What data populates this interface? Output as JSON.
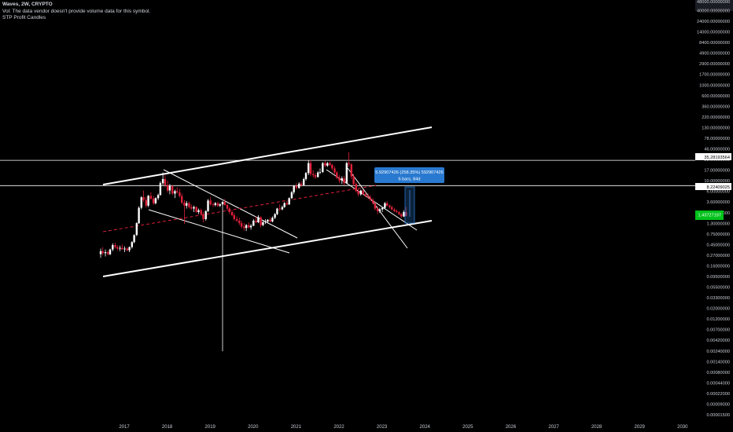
{
  "legend": {
    "title": "Waves, 2W, CRYPTO",
    "volume_note": "Vol: The data vendor doesn't provide volume data for this symbol.",
    "indicator": "STP Profit Candles"
  },
  "colors": {
    "background": "#000000",
    "up_candle": "#ffffff",
    "down_candle": "#e0203a",
    "trend_line": "#ffffff",
    "dashed_line": "#e0203a",
    "price_tag": "#00c21a",
    "measure_box": "#2979d0"
  },
  "chart_data": {
    "type": "candlestick",
    "title": "Waves, 2W, CRYPTO",
    "y_scale": "log",
    "x_ticks": [
      "2017",
      "2018",
      "2019",
      "2020",
      "2021",
      "2022",
      "2023",
      "2024",
      "2025",
      "2026",
      "2027",
      "2028",
      "2029",
      "2030"
    ],
    "y_ticks": [
      "40000.00000000",
      "24000.00000000",
      "14000.00000000",
      "8400.00000000",
      "4900.00000000",
      "2900.00000000",
      "1700.00000000",
      "1000.00000000",
      "600.00000000",
      "360.00000000",
      "220.00000000",
      "130.00000000",
      "78.00000000",
      "46.00000000",
      "28.00000000",
      "17.00000000",
      "10.00000000",
      "6.00000000",
      "3.60000000",
      "2.10000000",
      "1.30000000",
      "0.75000000",
      "0.45000000",
      "0.27000000",
      "0.16000000",
      "0.09500000",
      "0.05500000",
      "0.03300000",
      "0.02000000",
      "0.01200000",
      "0.00700000",
      "0.00420000",
      "0.00240000",
      "0.00140000",
      "0.00080000",
      "0.00044000",
      "0.00022000",
      "0.00009000",
      "0.00001500"
    ],
    "y_axis_top_label": "48000.00000000",
    "horizontal_levels": [
      {
        "label": "35.28193564",
        "value": 35.28
      },
      {
        "label": "8.22409025",
        "value": 8.22
      }
    ],
    "current_price_label": "1.43727197",
    "measurement": {
      "line1": "5.92907426 (258.35%) 592907426",
      "line2": "6 bars, 84d"
    },
    "candles": [
      {
        "t": 2016.45,
        "o": 0.16,
        "h": 0.22,
        "l": 0.13,
        "c": 0.19
      },
      {
        "t": 2016.5,
        "o": 0.19,
        "h": 0.24,
        "l": 0.15,
        "c": 0.17
      },
      {
        "t": 2016.56,
        "o": 0.17,
        "h": 0.21,
        "l": 0.14,
        "c": 0.18
      },
      {
        "t": 2016.62,
        "o": 0.18,
        "h": 0.2,
        "l": 0.15,
        "c": 0.16
      },
      {
        "t": 2016.67,
        "o": 0.16,
        "h": 0.22,
        "l": 0.15,
        "c": 0.21
      },
      {
        "t": 2016.73,
        "o": 0.21,
        "h": 0.3,
        "l": 0.19,
        "c": 0.27
      },
      {
        "t": 2016.79,
        "o": 0.27,
        "h": 0.31,
        "l": 0.22,
        "c": 0.24
      },
      {
        "t": 2016.84,
        "o": 0.24,
        "h": 0.27,
        "l": 0.2,
        "c": 0.22
      },
      {
        "t": 2016.9,
        "o": 0.22,
        "h": 0.26,
        "l": 0.19,
        "c": 0.23
      },
      {
        "t": 2016.95,
        "o": 0.23,
        "h": 0.28,
        "l": 0.21,
        "c": 0.21
      },
      {
        "t": 2017.01,
        "o": 0.21,
        "h": 0.25,
        "l": 0.18,
        "c": 0.22
      },
      {
        "t": 2017.07,
        "o": 0.22,
        "h": 0.24,
        "l": 0.19,
        "c": 0.2
      },
      {
        "t": 2017.12,
        "o": 0.2,
        "h": 0.25,
        "l": 0.18,
        "c": 0.24
      },
      {
        "t": 2017.18,
        "o": 0.24,
        "h": 0.34,
        "l": 0.22,
        "c": 0.32
      },
      {
        "t": 2017.23,
        "o": 0.32,
        "h": 0.5,
        "l": 0.3,
        "c": 0.48
      },
      {
        "t": 2017.29,
        "o": 0.48,
        "h": 1.0,
        "l": 0.45,
        "c": 0.95
      },
      {
        "t": 2017.34,
        "o": 0.95,
        "h": 2.5,
        "l": 0.9,
        "c": 2.3
      },
      {
        "t": 2017.4,
        "o": 2.3,
        "h": 4.5,
        "l": 2.1,
        "c": 4.2
      },
      {
        "t": 2017.45,
        "o": 4.2,
        "h": 6.2,
        "l": 3.2,
        "c": 3.6
      },
      {
        "t": 2017.51,
        "o": 3.6,
        "h": 4.4,
        "l": 2.3,
        "c": 2.6
      },
      {
        "t": 2017.56,
        "o": 2.6,
        "h": 4.8,
        "l": 2.4,
        "c": 4.6
      },
      {
        "t": 2017.62,
        "o": 4.6,
        "h": 5.6,
        "l": 3.6,
        "c": 3.9
      },
      {
        "t": 2017.68,
        "o": 3.9,
        "h": 4.6,
        "l": 2.7,
        "c": 3.0
      },
      {
        "t": 2017.73,
        "o": 3.0,
        "h": 4.2,
        "l": 2.8,
        "c": 4.0
      },
      {
        "t": 2017.79,
        "o": 4.0,
        "h": 5.2,
        "l": 3.6,
        "c": 4.8
      },
      {
        "t": 2017.84,
        "o": 4.8,
        "h": 10.5,
        "l": 4.6,
        "c": 9.5
      },
      {
        "t": 2017.9,
        "o": 9.5,
        "h": 17.5,
        "l": 8.5,
        "c": 12.0
      },
      {
        "t": 2017.95,
        "o": 12.0,
        "h": 15.0,
        "l": 7.5,
        "c": 8.5
      },
      {
        "t": 2018.01,
        "o": 8.5,
        "h": 11.0,
        "l": 5.5,
        "c": 6.2
      },
      {
        "t": 2018.06,
        "o": 6.2,
        "h": 9.0,
        "l": 5.0,
        "c": 8.0
      },
      {
        "t": 2018.12,
        "o": 8.0,
        "h": 8.5,
        "l": 4.8,
        "c": 5.2
      },
      {
        "t": 2018.18,
        "o": 5.2,
        "h": 6.5,
        "l": 4.0,
        "c": 6.0
      },
      {
        "t": 2018.23,
        "o": 6.0,
        "h": 7.5,
        "l": 5.2,
        "c": 5.6
      },
      {
        "t": 2018.29,
        "o": 5.6,
        "h": 6.8,
        "l": 4.2,
        "c": 4.5
      },
      {
        "t": 2018.34,
        "o": 4.5,
        "h": 5.2,
        "l": 2.8,
        "c": 3.1
      },
      {
        "t": 2018.4,
        "o": 3.1,
        "h": 3.6,
        "l": 0.9,
        "c": 2.6
      },
      {
        "t": 2018.45,
        "o": 2.6,
        "h": 3.4,
        "l": 2.2,
        "c": 3.0
      },
      {
        "t": 2018.51,
        "o": 3.0,
        "h": 3.3,
        "l": 2.2,
        "c": 2.4
      },
      {
        "t": 2018.56,
        "o": 2.4,
        "h": 2.8,
        "l": 2.0,
        "c": 2.2
      },
      {
        "t": 2018.62,
        "o": 2.2,
        "h": 2.6,
        "l": 1.8,
        "c": 2.4
      },
      {
        "t": 2018.68,
        "o": 2.4,
        "h": 2.5,
        "l": 1.7,
        "c": 1.8
      },
      {
        "t": 2018.73,
        "o": 1.8,
        "h": 2.2,
        "l": 1.6,
        "c": 2.0
      },
      {
        "t": 2018.79,
        "o": 2.0,
        "h": 2.2,
        "l": 1.5,
        "c": 1.6
      },
      {
        "t": 2018.84,
        "o": 1.6,
        "h": 1.8,
        "l": 1.0,
        "c": 1.2
      },
      {
        "t": 2018.9,
        "o": 1.2,
        "h": 2.0,
        "l": 1.1,
        "c": 1.9
      },
      {
        "t": 2018.95,
        "o": 1.9,
        "h": 3.8,
        "l": 1.8,
        "c": 3.5
      },
      {
        "t": 2019.01,
        "o": 3.5,
        "h": 4.2,
        "l": 2.6,
        "c": 2.8
      },
      {
        "t": 2019.07,
        "o": 2.8,
        "h": 3.1,
        "l": 2.4,
        "c": 2.7
      },
      {
        "t": 2019.12,
        "o": 2.7,
        "h": 3.2,
        "l": 2.5,
        "c": 3.0
      },
      {
        "t": 2019.18,
        "o": 3.0,
        "h": 3.3,
        "l": 2.4,
        "c": 2.6
      },
      {
        "t": 2019.23,
        "o": 2.6,
        "h": 3.0,
        "l": 2.4,
        "c": 2.8
      },
      {
        "t": 2019.29,
        "o": 2.8,
        "h": 3.4,
        "l": 0.0006,
        "c": 3.2
      },
      {
        "t": 2019.34,
        "o": 3.2,
        "h": 3.8,
        "l": 2.6,
        "c": 2.7
      },
      {
        "t": 2019.4,
        "o": 2.7,
        "h": 3.0,
        "l": 2.0,
        "c": 2.2
      },
      {
        "t": 2019.45,
        "o": 2.2,
        "h": 2.4,
        "l": 1.6,
        "c": 1.8
      },
      {
        "t": 2019.51,
        "o": 1.8,
        "h": 2.0,
        "l": 1.4,
        "c": 1.5
      },
      {
        "t": 2019.56,
        "o": 1.5,
        "h": 1.7,
        "l": 1.1,
        "c": 1.2
      },
      {
        "t": 2019.62,
        "o": 1.2,
        "h": 1.4,
        "l": 1.0,
        "c": 1.1
      },
      {
        "t": 2019.68,
        "o": 1.1,
        "h": 1.3,
        "l": 0.85,
        "c": 0.95
      },
      {
        "t": 2019.73,
        "o": 0.95,
        "h": 1.1,
        "l": 0.7,
        "c": 0.78
      },
      {
        "t": 2019.79,
        "o": 0.78,
        "h": 0.95,
        "l": 0.62,
        "c": 0.72
      },
      {
        "t": 2019.84,
        "o": 0.72,
        "h": 0.9,
        "l": 0.6,
        "c": 0.85
      },
      {
        "t": 2019.9,
        "o": 0.85,
        "h": 1.0,
        "l": 0.7,
        "c": 0.75
      },
      {
        "t": 2019.95,
        "o": 0.75,
        "h": 0.9,
        "l": 0.65,
        "c": 0.82
      },
      {
        "t": 2020.01,
        "o": 0.82,
        "h": 1.2,
        "l": 0.8,
        "c": 1.1
      },
      {
        "t": 2020.07,
        "o": 1.1,
        "h": 1.4,
        "l": 0.95,
        "c": 1.0
      },
      {
        "t": 2020.12,
        "o": 1.0,
        "h": 1.5,
        "l": 0.95,
        "c": 1.35
      },
      {
        "t": 2020.18,
        "o": 1.35,
        "h": 1.4,
        "l": 0.75,
        "c": 0.85
      },
      {
        "t": 2020.23,
        "o": 0.85,
        "h": 1.1,
        "l": 0.8,
        "c": 1.0
      },
      {
        "t": 2020.29,
        "o": 1.0,
        "h": 1.2,
        "l": 0.9,
        "c": 1.05
      },
      {
        "t": 2020.34,
        "o": 1.05,
        "h": 1.2,
        "l": 0.95,
        "c": 1.15
      },
      {
        "t": 2020.4,
        "o": 1.15,
        "h": 1.3,
        "l": 1.0,
        "c": 1.05
      },
      {
        "t": 2020.45,
        "o": 1.05,
        "h": 1.4,
        "l": 1.0,
        "c": 1.3
      },
      {
        "t": 2020.51,
        "o": 1.3,
        "h": 1.7,
        "l": 1.2,
        "c": 1.6
      },
      {
        "t": 2020.56,
        "o": 1.6,
        "h": 2.3,
        "l": 1.5,
        "c": 2.2
      },
      {
        "t": 2020.62,
        "o": 2.2,
        "h": 2.8,
        "l": 1.9,
        "c": 2.1
      },
      {
        "t": 2020.68,
        "o": 2.1,
        "h": 2.6,
        "l": 2.0,
        "c": 2.4
      },
      {
        "t": 2020.73,
        "o": 2.4,
        "h": 3.2,
        "l": 2.3,
        "c": 3.0
      },
      {
        "t": 2020.79,
        "o": 3.0,
        "h": 3.4,
        "l": 2.6,
        "c": 2.8
      },
      {
        "t": 2020.84,
        "o": 2.8,
        "h": 4.2,
        "l": 2.7,
        "c": 4.0
      },
      {
        "t": 2020.9,
        "o": 4.0,
        "h": 6.0,
        "l": 3.8,
        "c": 5.6
      },
      {
        "t": 2020.95,
        "o": 5.6,
        "h": 8.5,
        "l": 5.0,
        "c": 8.0
      },
      {
        "t": 2021.01,
        "o": 8.0,
        "h": 9.5,
        "l": 6.5,
        "c": 7.2
      },
      {
        "t": 2021.07,
        "o": 7.2,
        "h": 10.0,
        "l": 6.8,
        "c": 9.2
      },
      {
        "t": 2021.12,
        "o": 9.2,
        "h": 10.5,
        "l": 7.8,
        "c": 8.5
      },
      {
        "t": 2021.18,
        "o": 8.5,
        "h": 13.0,
        "l": 8.2,
        "c": 12.0
      },
      {
        "t": 2021.23,
        "o": 12.0,
        "h": 18.0,
        "l": 11.0,
        "c": 17.0
      },
      {
        "t": 2021.29,
        "o": 17.0,
        "h": 35.0,
        "l": 15.0,
        "c": 30.0
      },
      {
        "t": 2021.34,
        "o": 30.0,
        "h": 36.0,
        "l": 14.0,
        "c": 16.0
      },
      {
        "t": 2021.4,
        "o": 16.0,
        "h": 20.0,
        "l": 13.0,
        "c": 15.0
      },
      {
        "t": 2021.45,
        "o": 15.0,
        "h": 17.0,
        "l": 12.0,
        "c": 13.5
      },
      {
        "t": 2021.51,
        "o": 13.5,
        "h": 19.0,
        "l": 13.0,
        "c": 17.5
      },
      {
        "t": 2021.56,
        "o": 17.5,
        "h": 22.0,
        "l": 16.0,
        "c": 18.0
      },
      {
        "t": 2021.62,
        "o": 18.0,
        "h": 32.0,
        "l": 17.0,
        "c": 30.0
      },
      {
        "t": 2021.68,
        "o": 30.0,
        "h": 34.0,
        "l": 24.0,
        "c": 26.0
      },
      {
        "t": 2021.73,
        "o": 26.0,
        "h": 32.0,
        "l": 24.0,
        "c": 30.0
      },
      {
        "t": 2021.79,
        "o": 30.0,
        "h": 33.0,
        "l": 25.0,
        "c": 27.0
      },
      {
        "t": 2021.84,
        "o": 27.0,
        "h": 29.0,
        "l": 20.0,
        "c": 22.0
      },
      {
        "t": 2021.9,
        "o": 22.0,
        "h": 25.0,
        "l": 16.0,
        "c": 17.5
      },
      {
        "t": 2021.95,
        "o": 17.5,
        "h": 19.0,
        "l": 12.0,
        "c": 13.0
      },
      {
        "t": 2022.01,
        "o": 13.0,
        "h": 15.0,
        "l": 9.5,
        "c": 11.0
      },
      {
        "t": 2022.07,
        "o": 11.0,
        "h": 14.0,
        "l": 9.0,
        "c": 12.5
      },
      {
        "t": 2022.12,
        "o": 12.5,
        "h": 14.5,
        "l": 8.5,
        "c": 9.5
      },
      {
        "t": 2022.18,
        "o": 9.5,
        "h": 32.0,
        "l": 9.0,
        "c": 30.0
      },
      {
        "t": 2022.23,
        "o": 30.0,
        "h": 56.0,
        "l": 24.0,
        "c": 28.0
      },
      {
        "t": 2022.29,
        "o": 28.0,
        "h": 30.0,
        "l": 12.0,
        "c": 14.0
      },
      {
        "t": 2022.34,
        "o": 14.0,
        "h": 16.0,
        "l": 8.0,
        "c": 9.0
      },
      {
        "t": 2022.4,
        "o": 9.0,
        "h": 10.0,
        "l": 5.5,
        "c": 6.0
      },
      {
        "t": 2022.45,
        "o": 6.0,
        "h": 6.8,
        "l": 4.5,
        "c": 5.0
      },
      {
        "t": 2022.51,
        "o": 5.0,
        "h": 6.5,
        "l": 4.6,
        "c": 6.2
      },
      {
        "t": 2022.56,
        "o": 6.2,
        "h": 6.5,
        "l": 4.8,
        "c": 5.0
      },
      {
        "t": 2022.62,
        "o": 5.0,
        "h": 5.6,
        "l": 4.2,
        "c": 4.5
      },
      {
        "t": 2022.68,
        "o": 4.5,
        "h": 5.2,
        "l": 3.8,
        "c": 4.2
      },
      {
        "t": 2022.73,
        "o": 4.2,
        "h": 4.8,
        "l": 3.4,
        "c": 3.6
      },
      {
        "t": 2022.79,
        "o": 3.6,
        "h": 4.0,
        "l": 2.8,
        "c": 3.0
      },
      {
        "t": 2022.84,
        "o": 3.0,
        "h": 3.2,
        "l": 2.0,
        "c": 2.2
      },
      {
        "t": 2022.9,
        "o": 2.2,
        "h": 2.5,
        "l": 1.6,
        "c": 1.9
      },
      {
        "t": 2022.95,
        "o": 1.9,
        "h": 2.3,
        "l": 1.7,
        "c": 2.1
      },
      {
        "t": 2023.01,
        "o": 2.1,
        "h": 2.4,
        "l": 1.8,
        "c": 2.3
      },
      {
        "t": 2023.07,
        "o": 2.3,
        "h": 3.2,
        "l": 2.2,
        "c": 3.0
      },
      {
        "t": 2023.12,
        "o": 3.0,
        "h": 3.4,
        "l": 2.5,
        "c": 2.6
      },
      {
        "t": 2023.18,
        "o": 2.6,
        "h": 2.8,
        "l": 2.2,
        "c": 2.4
      },
      {
        "t": 2023.23,
        "o": 2.4,
        "h": 2.6,
        "l": 2.0,
        "c": 2.1
      },
      {
        "t": 2023.29,
        "o": 2.1,
        "h": 2.3,
        "l": 1.8,
        "c": 1.9
      },
      {
        "t": 2023.34,
        "o": 1.9,
        "h": 2.1,
        "l": 1.7,
        "c": 1.8
      },
      {
        "t": 2023.4,
        "o": 1.8,
        "h": 1.9,
        "l": 1.5,
        "c": 1.6
      },
      {
        "t": 2023.45,
        "o": 1.6,
        "h": 1.7,
        "l": 1.3,
        "c": 1.4
      },
      {
        "t": 2023.51,
        "o": 1.4,
        "h": 2.0,
        "l": 1.35,
        "c": 1.8
      },
      {
        "t": 2023.56,
        "o": 1.8,
        "h": 2.4,
        "l": 1.4,
        "c": 1.44
      }
    ]
  }
}
